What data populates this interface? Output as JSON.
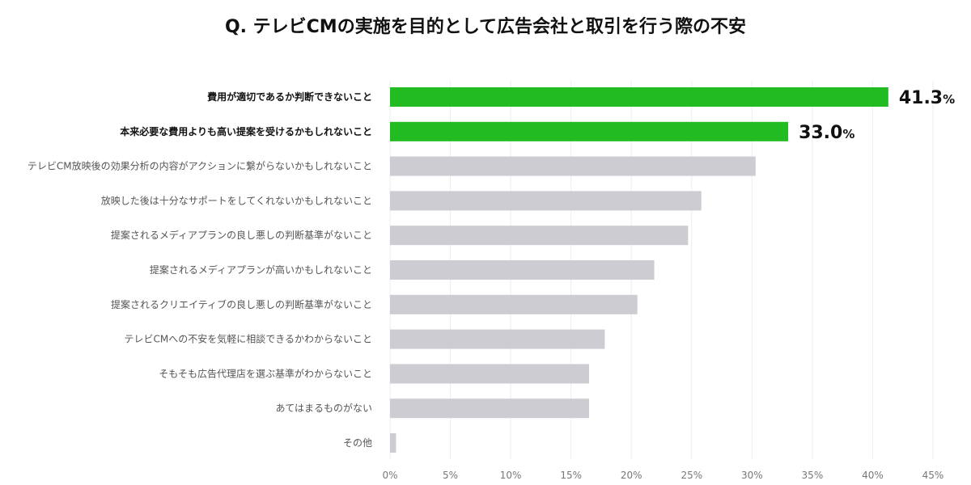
{
  "chart_data": {
    "type": "bar",
    "orientation": "horizontal",
    "title": "Q. テレビCMの実施を目的として広告会社と取引を行う際の不安",
    "xlabel": "",
    "ylabel": "",
    "xlim": [
      0,
      45
    ],
    "grid": true,
    "ticks": [
      {
        "value": 0,
        "label": "0%"
      },
      {
        "value": 5,
        "label": "5%"
      },
      {
        "value": 10,
        "label": "10%"
      },
      {
        "value": 15,
        "label": "15%"
      },
      {
        "value": 20,
        "label": "20%"
      },
      {
        "value": 25,
        "label": "25%"
      },
      {
        "value": 30,
        "label": "30%"
      },
      {
        "value": 35,
        "label": "35%"
      },
      {
        "value": 40,
        "label": "40%"
      },
      {
        "value": 45,
        "label": "45%"
      }
    ],
    "items": [
      {
        "label": "費用が適切であるか判断できないこと",
        "value": 41.3,
        "highlight": true,
        "value_label": {
          "num": "41.3",
          "unit": "%"
        }
      },
      {
        "label": "本来必要な費用よりも高い提案を受けるかもしれないこと",
        "value": 33.0,
        "highlight": true,
        "value_label": {
          "num": "33.0",
          "unit": "%"
        }
      },
      {
        "label": "テレビCM放映後の効果分析の内容がアクションに繋がらないかもしれないこと",
        "value": 30.3,
        "highlight": false
      },
      {
        "label": "放映した後は十分なサポートをしてくれないかもしれないこと",
        "value": 25.8,
        "highlight": false
      },
      {
        "label": "提案されるメディアプランの良し悪しの判断基準がないこと",
        "value": 24.7,
        "highlight": false
      },
      {
        "label": "提案されるメディアプランが高いかもしれないこと",
        "value": 21.9,
        "highlight": false
      },
      {
        "label": "提案されるクリエイティブの良し悪しの判断基準がないこと",
        "value": 20.5,
        "highlight": false
      },
      {
        "label": "テレビCMへの不安を気軽に相談できるかわからないこと",
        "value": 17.8,
        "highlight": false
      },
      {
        "label": "そもそも広告代理店を選ぶ基準がわからないこと",
        "value": 16.5,
        "highlight": false
      },
      {
        "label": "あてはまるものがない",
        "value": 16.5,
        "highlight": false
      },
      {
        "label": "その他",
        "value": 0.5,
        "highlight": false
      }
    ],
    "colors": {
      "highlight": "#22bb22",
      "normal": "#ccccd2",
      "grid": "#eeeeee"
    }
  }
}
